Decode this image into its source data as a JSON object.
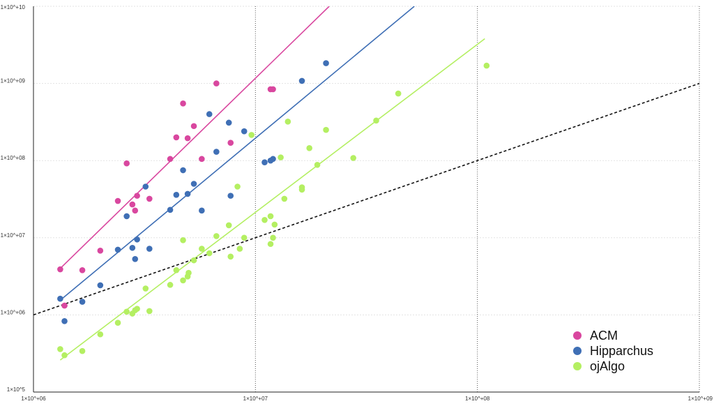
{
  "chart_data": {
    "type": "scatter",
    "title": "",
    "xlabel": "",
    "ylabel": "",
    "x_scale": "log",
    "y_scale": "log",
    "xlim": [
      1000000,
      1000000000
    ],
    "ylim": [
      100000,
      10000000000
    ],
    "grid": true,
    "legend_position": "bottom-right",
    "x_ticks": [
      {
        "value": 1000000,
        "label": "1×10^+06"
      },
      {
        "value": 10000000,
        "label": "1×10^+07"
      },
      {
        "value": 100000000,
        "label": "1×10^+08"
      },
      {
        "value": 1000000000,
        "label": "1×10^+09"
      }
    ],
    "y_ticks": [
      {
        "value": 100000,
        "label": "1×10^5"
      },
      {
        "value": 1000000,
        "label": "1×10^+06"
      },
      {
        "value": 10000000,
        "label": "1×10^+07"
      },
      {
        "value": 100000000,
        "label": "1×10^+08"
      },
      {
        "value": 1000000000,
        "label": "1×10^+09"
      },
      {
        "value": 10000000000,
        "label": "1×10^+10"
      }
    ],
    "series": [
      {
        "name": "ACM",
        "color": "#d9479f",
        "points": [
          [
            1320000,
            3900000
          ],
          [
            1380000,
            1320000
          ],
          [
            1660000,
            3800000
          ],
          [
            2000000,
            6800000
          ],
          [
            2400000,
            30000000
          ],
          [
            2630000,
            92000000
          ],
          [
            2790000,
            27000000
          ],
          [
            2870000,
            22500000
          ],
          [
            2930000,
            35000000
          ],
          [
            3330000,
            32000000
          ],
          [
            4130000,
            105000000
          ],
          [
            4400000,
            200000000
          ],
          [
            4720000,
            550000000
          ],
          [
            4950000,
            195000000
          ],
          [
            5280000,
            280000000
          ],
          [
            5730000,
            105000000
          ],
          [
            6670000,
            1000000000
          ],
          [
            7730000,
            170000000
          ],
          [
            11700000,
            840000000
          ],
          [
            12000000,
            840000000
          ]
        ],
        "fit": [
          [
            1320000,
            4000000
          ],
          [
            21500000,
            10000000000
          ]
        ]
      },
      {
        "name": "Hipparchus",
        "color": "#3f6fb5",
        "points": [
          [
            1320000,
            1620000
          ],
          [
            1380000,
            830000
          ],
          [
            1660000,
            1480000
          ],
          [
            2000000,
            2420000
          ],
          [
            2400000,
            7000000
          ],
          [
            2630000,
            19000000
          ],
          [
            2790000,
            7400000
          ],
          [
            2870000,
            5300000
          ],
          [
            2930000,
            9500000
          ],
          [
            3200000,
            46000000
          ],
          [
            3330000,
            7200000
          ],
          [
            4130000,
            23000000
          ],
          [
            4400000,
            36000000
          ],
          [
            4720000,
            75000000
          ],
          [
            4950000,
            37000000
          ],
          [
            5280000,
            50000000
          ],
          [
            5730000,
            22500000
          ],
          [
            6200000,
            400000000
          ],
          [
            6670000,
            130000000
          ],
          [
            7590000,
            310000000
          ],
          [
            7730000,
            35000000
          ],
          [
            8900000,
            240000000
          ],
          [
            11000000,
            95000000
          ],
          [
            11700000,
            100000000
          ],
          [
            12000000,
            105000000
          ],
          [
            16200000,
            1080000000
          ],
          [
            20800000,
            1830000000
          ]
        ],
        "fit": [
          [
            1320000,
            1550000
          ],
          [
            52000000,
            10000000000
          ]
        ]
      },
      {
        "name": "ojAlgo",
        "color": "#b4ef62",
        "points": [
          [
            1320000,
            360000
          ],
          [
            1380000,
            300000
          ],
          [
            1660000,
            340000
          ],
          [
            2000000,
            560000
          ],
          [
            2400000,
            790000
          ],
          [
            2630000,
            1100000
          ],
          [
            2790000,
            1040000
          ],
          [
            2870000,
            1150000
          ],
          [
            2930000,
            1200000
          ],
          [
            3200000,
            2200000
          ],
          [
            3330000,
            1120000
          ],
          [
            4130000,
            2450000
          ],
          [
            4400000,
            3800000
          ],
          [
            4720000,
            2800000
          ],
          [
            4720000,
            9300000
          ],
          [
            4950000,
            3150000
          ],
          [
            5000000,
            3500000
          ],
          [
            5280000,
            5100000
          ],
          [
            5730000,
            7200000
          ],
          [
            6200000,
            6300000
          ],
          [
            6670000,
            10500000
          ],
          [
            7590000,
            14500000
          ],
          [
            7730000,
            5700000
          ],
          [
            8300000,
            46000000
          ],
          [
            8500000,
            7200000
          ],
          [
            8900000,
            10000000
          ],
          [
            9600000,
            215000000
          ],
          [
            11000000,
            17000000
          ],
          [
            11700000,
            19000000
          ],
          [
            11700000,
            8300000
          ],
          [
            12000000,
            10000000
          ],
          [
            12200000,
            14800000
          ],
          [
            13000000,
            110000000
          ],
          [
            13500000,
            32000000
          ],
          [
            14000000,
            320000000
          ],
          [
            16200000,
            45000000
          ],
          [
            16200000,
            42000000
          ],
          [
            17500000,
            145000000
          ],
          [
            19000000,
            88000000
          ],
          [
            20800000,
            250000000
          ],
          [
            27600000,
            108000000
          ],
          [
            35000000,
            330000000
          ],
          [
            44000000,
            740000000
          ],
          [
            110000000,
            1700000000
          ]
        ],
        "fit": [
          [
            1320000,
            260000
          ],
          [
            108000000,
            3800000000
          ]
        ]
      }
    ],
    "reference_line": {
      "style": "dashed",
      "color": "#111111",
      "points": [
        [
          1000000,
          1000000
        ],
        [
          1000000000,
          1000000000
        ]
      ]
    }
  }
}
